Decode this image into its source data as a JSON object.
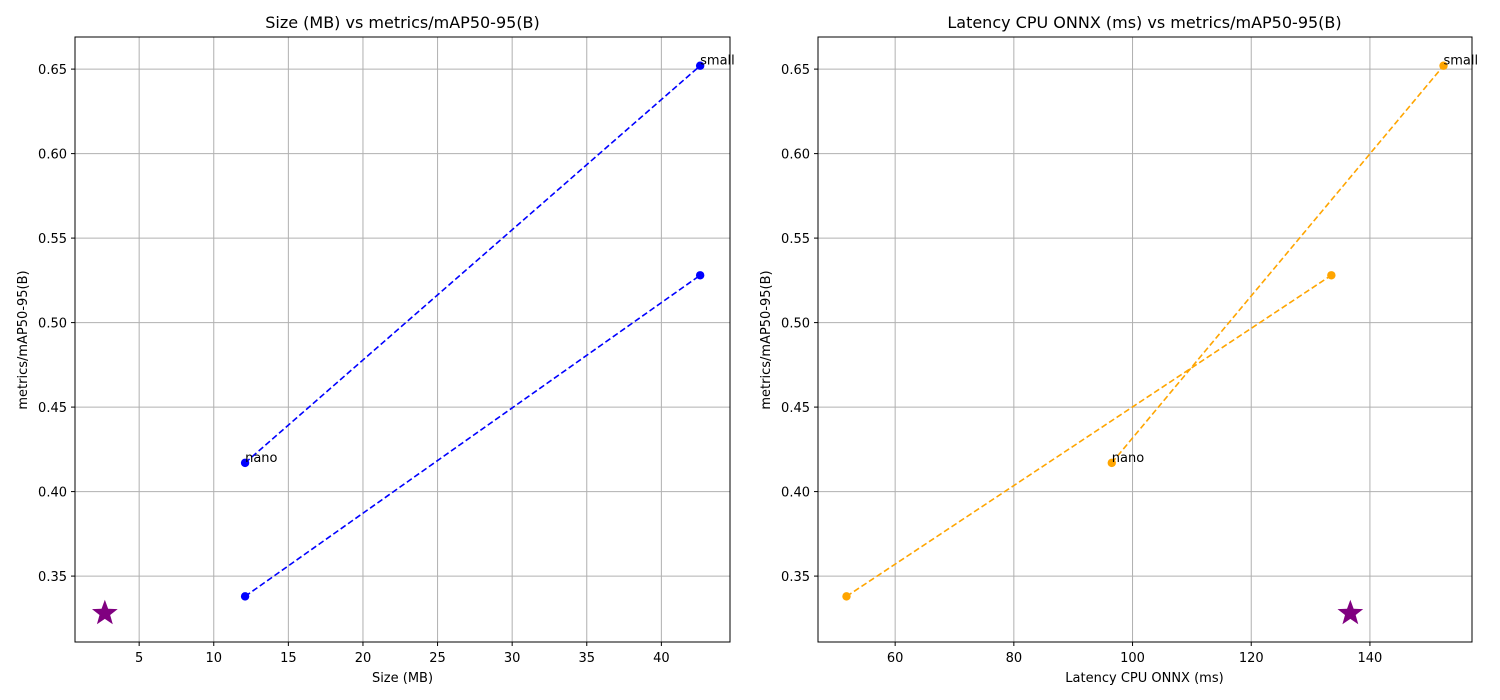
{
  "chart_data": [
    {
      "type": "scatter",
      "title": "Size (MB) vs metrics/mAP50-95(B)",
      "xlabel": "Size (MB)",
      "ylabel": "metrics/mAP50-95(B)",
      "xlim": [
        0.7,
        44.6
      ],
      "ylim": [
        0.311,
        0.669
      ],
      "xticks": [
        5,
        10,
        15,
        20,
        25,
        30,
        35,
        40
      ],
      "yticks": [
        0.35,
        0.4,
        0.45,
        0.5,
        0.55,
        0.6,
        0.65
      ],
      "xtick_labels": [
        "5",
        "10",
        "15",
        "20",
        "25",
        "30",
        "35",
        "40"
      ],
      "ytick_labels": [
        "0.35",
        "0.40",
        "0.45",
        "0.50",
        "0.55",
        "0.60",
        "0.65"
      ],
      "grid": true,
      "color": "#0000ff",
      "series": [
        {
          "x": [
            12.1,
            42.6
          ],
          "y": [
            0.417,
            0.652
          ],
          "labels": [
            "nano",
            "small"
          ]
        },
        {
          "x": [
            12.1,
            42.6
          ],
          "y": [
            0.338,
            0.528
          ],
          "labels": [
            "",
            ""
          ]
        }
      ],
      "star": {
        "x": 2.7,
        "y": 0.328,
        "color": "#800080"
      }
    },
    {
      "type": "scatter",
      "title": "Latency CPU ONNX (ms) vs metrics/mAP50-95(B)",
      "xlabel": "Latency CPU ONNX (ms)",
      "ylabel": "metrics/mAP50-95(B)",
      "xlim": [
        47.0,
        157.2
      ],
      "ylim": [
        0.311,
        0.669
      ],
      "xticks": [
        60,
        80,
        100,
        120,
        140
      ],
      "yticks": [
        0.35,
        0.4,
        0.45,
        0.5,
        0.55,
        0.6,
        0.65
      ],
      "xtick_labels": [
        "60",
        "80",
        "100",
        "120",
        "140"
      ],
      "ytick_labels": [
        "0.35",
        "0.40",
        "0.45",
        "0.50",
        "0.55",
        "0.60",
        "0.65"
      ],
      "grid": true,
      "color": "#ffa500",
      "series": [
        {
          "x": [
            96.5,
            152.4
          ],
          "y": [
            0.417,
            0.652
          ],
          "labels": [
            "nano",
            "small"
          ]
        },
        {
          "x": [
            51.8,
            133.5
          ],
          "y": [
            0.338,
            0.528
          ],
          "labels": [
            "",
            ""
          ]
        }
      ],
      "star": {
        "x": 136.7,
        "y": 0.328,
        "color": "#800080"
      }
    }
  ]
}
